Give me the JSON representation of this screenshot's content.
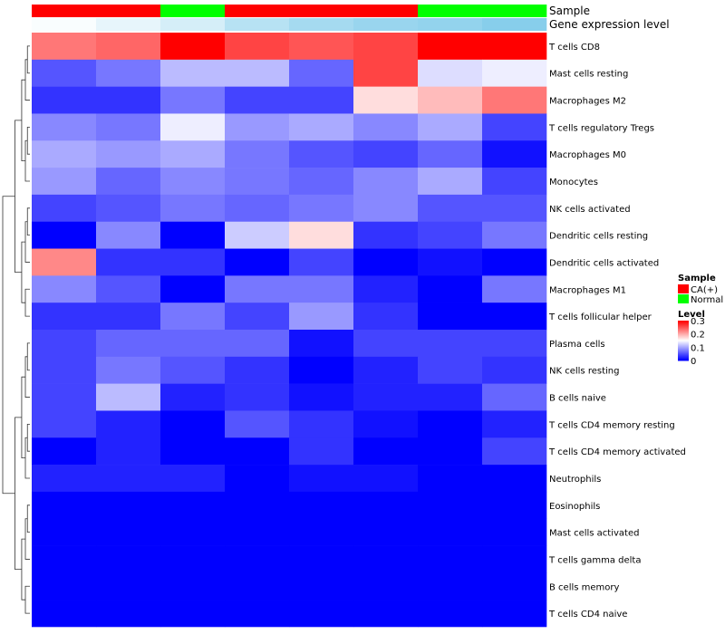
{
  "chart_data": {
    "type": "heatmap",
    "rows": [
      "T cells CD8",
      "Mast cells resting",
      "Macrophages M2",
      "T cells regulatory  Tregs",
      "Macrophages M0",
      "Monocytes",
      "NK cells activated",
      "Dendritic cells resting",
      "Dendritic cells activated",
      "Macrophages M1",
      "T cells follicular helper",
      "Plasma cells",
      "NK cells resting",
      "B cells naive",
      "T cells CD4 memory resting",
      "T cells CD4 memory activated",
      "Neutrophils",
      "Eosinophils",
      "Mast cells activated",
      "T cells gamma delta",
      "B cells memory",
      "T cells CD4 naive"
    ],
    "values": [
      [
        0.23,
        0.24,
        0.3,
        0.26,
        0.25,
        0.26,
        0.3,
        0.3
      ],
      [
        0.05,
        0.07,
        0.11,
        0.11,
        0.06,
        0.26,
        0.13,
        0.14
      ],
      [
        0.03,
        0.03,
        0.07,
        0.04,
        0.04,
        0.17,
        0.19,
        0.23
      ],
      [
        0.08,
        0.07,
        0.14,
        0.09,
        0.1,
        0.08,
        0.1,
        0.04
      ],
      [
        0.1,
        0.09,
        0.1,
        0.07,
        0.05,
        0.04,
        0.06,
        0.01
      ],
      [
        0.09,
        0.06,
        0.08,
        0.07,
        0.06,
        0.08,
        0.1,
        0.04
      ],
      [
        0.04,
        0.05,
        0.07,
        0.06,
        0.07,
        0.08,
        0.05,
        0.05
      ],
      [
        0.0,
        0.08,
        0.0,
        0.12,
        0.17,
        0.03,
        0.04,
        0.07
      ],
      [
        0.22,
        0.03,
        0.03,
        0.0,
        0.04,
        0.0,
        0.01,
        0.0
      ],
      [
        0.08,
        0.05,
        0.0,
        0.07,
        0.07,
        0.02,
        0.0,
        0.07
      ],
      [
        0.03,
        0.03,
        0.07,
        0.04,
        0.09,
        0.03,
        0.0,
        0.0
      ],
      [
        0.04,
        0.06,
        0.06,
        0.06,
        0.01,
        0.04,
        0.04,
        0.04
      ],
      [
        0.04,
        0.07,
        0.05,
        0.03,
        0.0,
        0.02,
        0.04,
        0.03
      ],
      [
        0.04,
        0.11,
        0.02,
        0.03,
        0.01,
        0.02,
        0.02,
        0.06
      ],
      [
        0.04,
        0.02,
        0.0,
        0.05,
        0.03,
        0.01,
        0.0,
        0.02
      ],
      [
        0.0,
        0.02,
        0.0,
        0.0,
        0.03,
        0.0,
        0.0,
        0.04
      ],
      [
        0.02,
        0.02,
        0.02,
        0.0,
        0.01,
        0.01,
        0.0,
        0.0
      ],
      [
        0.0,
        0.0,
        0.0,
        0.0,
        0.0,
        0.0,
        0.0,
        0.0
      ],
      [
        0.0,
        0.0,
        0.0,
        0.0,
        0.0,
        0.0,
        0.0,
        0.0
      ],
      [
        0.0,
        0.0,
        0.0,
        0.0,
        0.0,
        0.0,
        0.0,
        0.0
      ],
      [
        0.0,
        0.0,
        0.0,
        0.0,
        0.0,
        0.0,
        0.0,
        0.0
      ],
      [
        0.0,
        0.0,
        0.0,
        0.0,
        0.0,
        0.0,
        0.0,
        0.0
      ]
    ],
    "annotations": [
      {
        "label": "Sample",
        "values": [
          "CA(+)",
          "CA(+)",
          "Normal",
          "CA(+)",
          "CA(+)",
          "CA(+)",
          "Normal",
          "Normal"
        ]
      },
      {
        "label": "Gene expression level",
        "values": [
          0.05,
          0.2,
          0.35,
          0.6,
          0.75,
          0.85,
          0.9,
          1.0
        ]
      }
    ],
    "legends": {
      "sample": {
        "title": "Sample",
        "items": [
          {
            "label": "CA(+)",
            "color": "#ff0000"
          },
          {
            "label": "Normal",
            "color": "#00ff00"
          }
        ]
      },
      "level": {
        "title": "Level",
        "ticks": [
          "0.3",
          "0.2",
          "0.1",
          "0"
        ],
        "range": [
          0,
          0.3
        ]
      }
    },
    "colors": {
      "low": "#0000ff",
      "mid": "#ffffff",
      "high": "#ff0000",
      "expr_low": "#ffffff",
      "expr_high": "#87ceeb"
    },
    "row_clustering": true,
    "col_clustering": false
  }
}
